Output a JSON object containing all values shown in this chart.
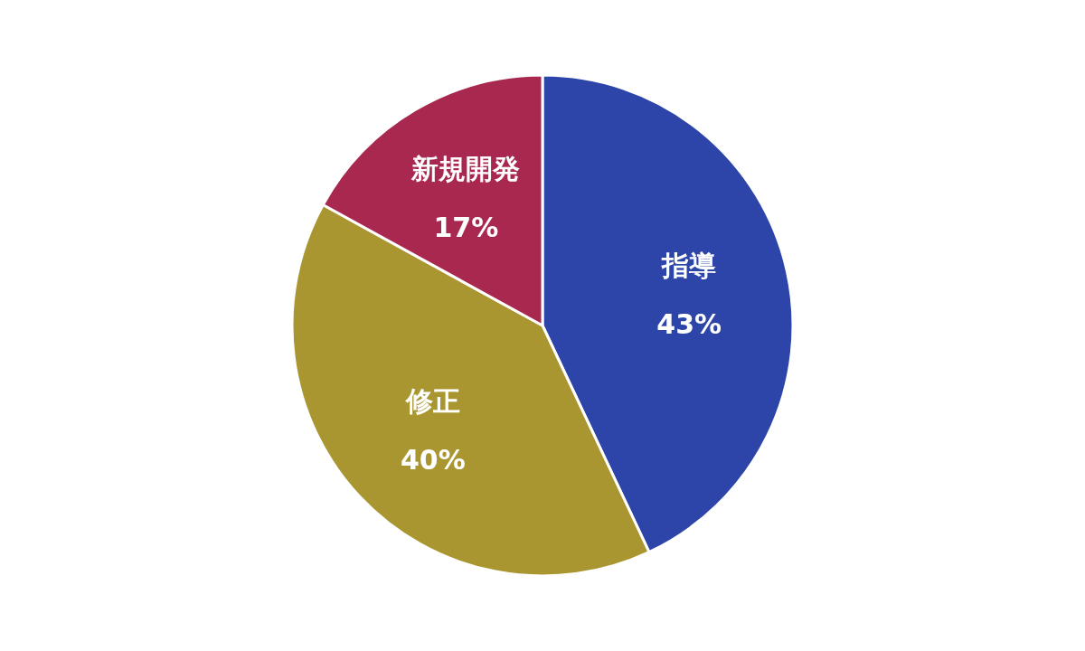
{
  "chart_data": {
    "type": "pie",
    "categories": [
      "指導",
      "修正",
      "新規開発"
    ],
    "values": [
      43,
      40,
      17
    ],
    "colors": [
      "#2d45a8",
      "#a99630",
      "#a82850"
    ],
    "value_labels": [
      "43%",
      "40%",
      "17%"
    ],
    "legend": false
  }
}
